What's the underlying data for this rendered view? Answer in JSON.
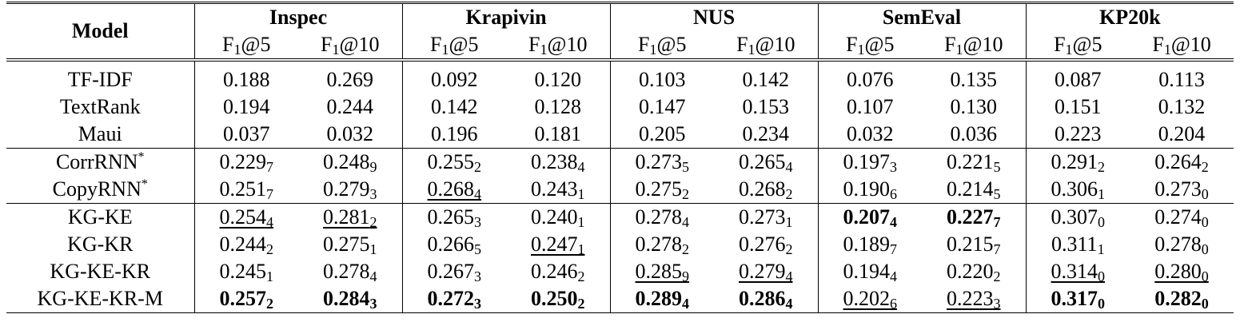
{
  "header": {
    "model_label": "Model",
    "groups": [
      "Inspec",
      "Krapivin",
      "NUS",
      "SemEval",
      "KP20k"
    ],
    "metric_prefix": "F",
    "metric_sub": "1",
    "metrics": [
      "@5",
      "@10"
    ]
  },
  "sections": [
    {
      "rows": [
        {
          "name": "TF-IDF",
          "star": false,
          "cells": [
            {
              "v": "0.188"
            },
            {
              "v": "0.269"
            },
            {
              "v": "0.092"
            },
            {
              "v": "0.120"
            },
            {
              "v": "0.103"
            },
            {
              "v": "0.142"
            },
            {
              "v": "0.076"
            },
            {
              "v": "0.135"
            },
            {
              "v": "0.087"
            },
            {
              "v": "0.113"
            }
          ]
        },
        {
          "name": "TextRank",
          "star": false,
          "cells": [
            {
              "v": "0.194"
            },
            {
              "v": "0.244"
            },
            {
              "v": "0.142"
            },
            {
              "v": "0.128"
            },
            {
              "v": "0.147"
            },
            {
              "v": "0.153"
            },
            {
              "v": "0.107"
            },
            {
              "v": "0.130"
            },
            {
              "v": "0.151"
            },
            {
              "v": "0.132"
            }
          ]
        },
        {
          "name": "Maui",
          "star": false,
          "cells": [
            {
              "v": "0.037"
            },
            {
              "v": "0.032"
            },
            {
              "v": "0.196"
            },
            {
              "v": "0.181"
            },
            {
              "v": "0.205"
            },
            {
              "v": "0.234"
            },
            {
              "v": "0.032"
            },
            {
              "v": "0.036"
            },
            {
              "v": "0.223"
            },
            {
              "v": "0.204"
            }
          ]
        }
      ]
    },
    {
      "rows": [
        {
          "name": "CorrRNN",
          "star": true,
          "cells": [
            {
              "v": "0.229",
              "s": "7"
            },
            {
              "v": "0.248",
              "s": "9"
            },
            {
              "v": "0.255",
              "s": "2"
            },
            {
              "v": "0.238",
              "s": "4"
            },
            {
              "v": "0.273",
              "s": "5"
            },
            {
              "v": "0.265",
              "s": "4"
            },
            {
              "v": "0.197",
              "s": "3"
            },
            {
              "v": "0.221",
              "s": "5"
            },
            {
              "v": "0.291",
              "s": "2"
            },
            {
              "v": "0.264",
              "s": "2"
            }
          ]
        },
        {
          "name": "CopyRNN",
          "star": true,
          "cells": [
            {
              "v": "0.251",
              "s": "7"
            },
            {
              "v": "0.279",
              "s": "3"
            },
            {
              "v": "0.268",
              "s": "4",
              "u": true
            },
            {
              "v": "0.243",
              "s": "1"
            },
            {
              "v": "0.275",
              "s": "2"
            },
            {
              "v": "0.268",
              "s": "2"
            },
            {
              "v": "0.190",
              "s": "6"
            },
            {
              "v": "0.214",
              "s": "5"
            },
            {
              "v": "0.306",
              "s": "1"
            },
            {
              "v": "0.273",
              "s": "0"
            }
          ]
        }
      ]
    },
    {
      "rows": [
        {
          "name": "KG-KE",
          "star": false,
          "cells": [
            {
              "v": "0.254",
              "s": "4",
              "u": true
            },
            {
              "v": "0.281",
              "s": "2",
              "u": true
            },
            {
              "v": "0.265",
              "s": "3"
            },
            {
              "v": "0.240",
              "s": "1"
            },
            {
              "v": "0.278",
              "s": "4"
            },
            {
              "v": "0.273",
              "s": "1"
            },
            {
              "v": "0.207",
              "s": "4",
              "b": true
            },
            {
              "v": "0.227",
              "s": "7",
              "b": true
            },
            {
              "v": "0.307",
              "s": "0"
            },
            {
              "v": "0.274",
              "s": "0"
            }
          ]
        },
        {
          "name": "KG-KR",
          "star": false,
          "cells": [
            {
              "v": "0.244",
              "s": "2"
            },
            {
              "v": "0.275",
              "s": "1"
            },
            {
              "v": "0.266",
              "s": "5"
            },
            {
              "v": "0.247",
              "s": "1",
              "u": true
            },
            {
              "v": "0.278",
              "s": "2"
            },
            {
              "v": "0.276",
              "s": "2"
            },
            {
              "v": "0.189",
              "s": "7"
            },
            {
              "v": "0.215",
              "s": "7"
            },
            {
              "v": "0.311",
              "s": "1"
            },
            {
              "v": "0.278",
              "s": "0"
            }
          ]
        },
        {
          "name": "KG-KE-KR",
          "star": false,
          "cells": [
            {
              "v": "0.245",
              "s": "1"
            },
            {
              "v": "0.278",
              "s": "4"
            },
            {
              "v": "0.267",
              "s": "3"
            },
            {
              "v": "0.246",
              "s": "2"
            },
            {
              "v": "0.285",
              "s": "9",
              "u": true
            },
            {
              "v": "0.279",
              "s": "4",
              "u": true
            },
            {
              "v": "0.194",
              "s": "4"
            },
            {
              "v": "0.220",
              "s": "2"
            },
            {
              "v": "0.314",
              "s": "0",
              "u": true
            },
            {
              "v": "0.280",
              "s": "0",
              "u": true
            }
          ]
        },
        {
          "name": "KG-KE-KR-M",
          "star": false,
          "cells": [
            {
              "v": "0.257",
              "s": "2",
              "b": true
            },
            {
              "v": "0.284",
              "s": "3",
              "b": true
            },
            {
              "v": "0.272",
              "s": "3",
              "b": true
            },
            {
              "v": "0.250",
              "s": "2",
              "b": true
            },
            {
              "v": "0.289",
              "s": "4",
              "b": true
            },
            {
              "v": "0.286",
              "s": "4",
              "b": true
            },
            {
              "v": "0.202",
              "s": "6",
              "u": true
            },
            {
              "v": "0.223",
              "s": "3",
              "u": true
            },
            {
              "v": "0.317",
              "s": "0",
              "b": true
            },
            {
              "v": "0.282",
              "s": "0",
              "b": true
            }
          ]
        }
      ]
    }
  ]
}
